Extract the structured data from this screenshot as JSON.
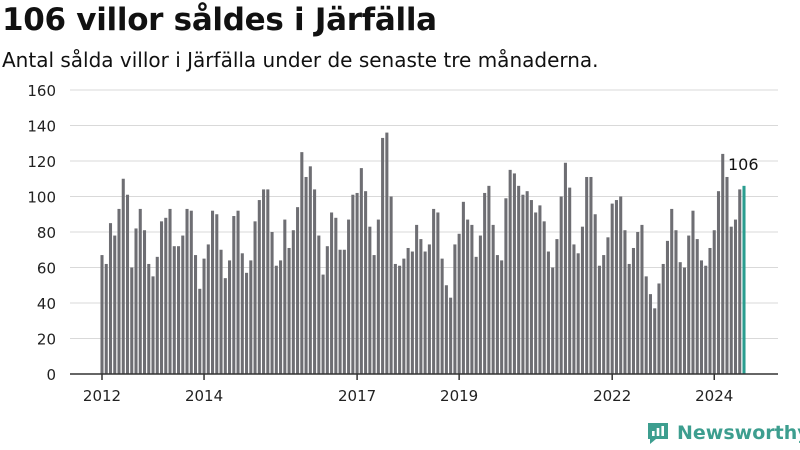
{
  "title": "106 villor såldes i Järfälla",
  "subtitle": "Antal sålda villor i Järfälla under de senaste tre månaderna.",
  "brand": {
    "name": "Newsworthy",
    "color": "#3d9e8f",
    "icon": "newsworthy-logo-icon"
  },
  "colors": {
    "bar": "#6e6e73",
    "highlight": "#2a9d8f",
    "grid": "#d9d9d9",
    "axis": "#333333"
  },
  "chart_data": {
    "type": "bar",
    "title": "106 villor såldes i Järfälla",
    "subtitle": "Antal sålda villor i Järfälla under de senaste tre månaderna.",
    "xlabel": "",
    "ylabel": "",
    "ylim": [
      0,
      160
    ],
    "yticks": [
      0,
      20,
      40,
      60,
      80,
      100,
      120,
      140,
      160
    ],
    "xticks": [
      "2012",
      "2014",
      "2017",
      "2019",
      "2022",
      "2024"
    ],
    "grid": true,
    "x_start": "2012-01",
    "x_end": "2024-10",
    "values": [
      67,
      62,
      85,
      78,
      93,
      110,
      101,
      60,
      82,
      93,
      81,
      62,
      55,
      66,
      86,
      88,
      93,
      72,
      72,
      78,
      93,
      92,
      67,
      48,
      65,
      73,
      92,
      90,
      70,
      54,
      64,
      89,
      92,
      68,
      57,
      64,
      86,
      98,
      104,
      104,
      80,
      61,
      64,
      87,
      71,
      81,
      94,
      125,
      111,
      117,
      104,
      78,
      56,
      72,
      91,
      88,
      70,
      70,
      87,
      101,
      102,
      116,
      103,
      83,
      67,
      87,
      133,
      136,
      100,
      62,
      61,
      65,
      71,
      69,
      84,
      76,
      69,
      73,
      93,
      91,
      65,
      50,
      43,
      73,
      79,
      97,
      87,
      84,
      66,
      78,
      102,
      106,
      84,
      67,
      64,
      99,
      115,
      113,
      106,
      101,
      103,
      98,
      91,
      95,
      86,
      69,
      60,
      76,
      100,
      119,
      105,
      73,
      68,
      83,
      111,
      111,
      90,
      61,
      67,
      77,
      96,
      98,
      100,
      81,
      62,
      71,
      80,
      84,
      55,
      45,
      37,
      51,
      62,
      75,
      93,
      81,
      63,
      60,
      78,
      92,
      76,
      64,
      61,
      71,
      81,
      103,
      124,
      111,
      83,
      87,
      104,
      106
    ],
    "highlight_last": true,
    "data_labels": [
      {
        "text": "106",
        "point": "last"
      }
    ]
  }
}
